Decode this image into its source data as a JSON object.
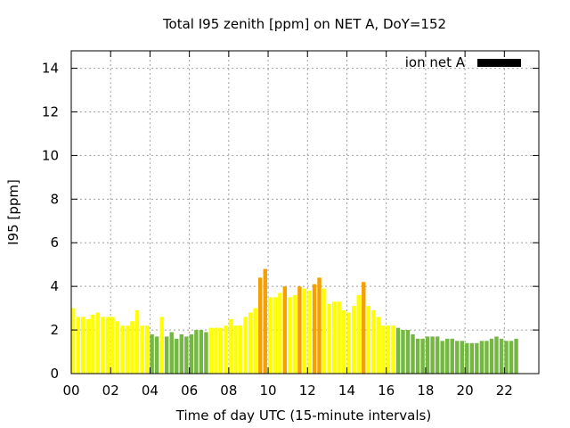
{
  "chart_data": {
    "type": "bar",
    "title": "Total I95 zenith [ppm] on NET A, DoY=152",
    "xlabel": "Time of day UTC (15-minute intervals)",
    "ylabel": "I95 [ppm]",
    "legend": {
      "label": "ion net A",
      "placement": "top-right",
      "color": "#000000"
    },
    "xlim": [
      0,
      23.75
    ],
    "ylim": [
      0,
      14.8
    ],
    "grid": true,
    "xticks": [
      "00",
      "02",
      "04",
      "06",
      "08",
      "10",
      "12",
      "14",
      "16",
      "18",
      "20",
      "22"
    ],
    "yticks": [
      "0",
      "2",
      "4",
      "6",
      "8",
      "10",
      "12",
      "14"
    ],
    "colors": {
      "green": "#74b842",
      "yellow": "#ffff00",
      "orange": "#f5a000"
    },
    "values": [
      3.0,
      2.6,
      2.6,
      2.5,
      2.7,
      2.8,
      2.6,
      2.6,
      2.6,
      2.4,
      2.2,
      2.2,
      2.4,
      2.9,
      2.2,
      2.2,
      1.8,
      1.7,
      2.6,
      1.7,
      1.9,
      1.6,
      1.8,
      1.7,
      1.8,
      2.0,
      2.0,
      1.9,
      2.1,
      2.1,
      2.1,
      2.2,
      2.5,
      2.2,
      2.2,
      2.6,
      2.8,
      3.0,
      4.4,
      4.8,
      3.5,
      3.5,
      3.7,
      4.0,
      3.5,
      3.6,
      4.0,
      3.9,
      3.8,
      4.1,
      4.4,
      3.9,
      3.2,
      3.3,
      3.3,
      2.9,
      2.8,
      3.1,
      3.6,
      4.2,
      3.1,
      2.9,
      2.6,
      2.2,
      2.2,
      2.2,
      2.1,
      2.0,
      2.0,
      1.8,
      1.6,
      1.6,
      1.7,
      1.7,
      1.7,
      1.5,
      1.6,
      1.6,
      1.5,
      1.5,
      1.4,
      1.4,
      1.4,
      1.5,
      1.5,
      1.6,
      1.7,
      1.6,
      1.5,
      1.5,
      1.6
    ],
    "bar_colors": [
      "yellow",
      "yellow",
      "yellow",
      "yellow",
      "yellow",
      "yellow",
      "yellow",
      "yellow",
      "yellow",
      "yellow",
      "yellow",
      "yellow",
      "yellow",
      "yellow",
      "yellow",
      "yellow",
      "green",
      "green",
      "yellow",
      "green",
      "green",
      "green",
      "green",
      "green",
      "green",
      "green",
      "green",
      "green",
      "yellow",
      "yellow",
      "yellow",
      "yellow",
      "yellow",
      "yellow",
      "yellow",
      "yellow",
      "yellow",
      "yellow",
      "orange",
      "orange",
      "yellow",
      "yellow",
      "yellow",
      "orange",
      "yellow",
      "yellow",
      "orange",
      "yellow",
      "yellow",
      "orange",
      "orange",
      "yellow",
      "yellow",
      "yellow",
      "yellow",
      "yellow",
      "yellow",
      "yellow",
      "yellow",
      "orange",
      "yellow",
      "yellow",
      "yellow",
      "yellow",
      "yellow",
      "yellow",
      "green",
      "green",
      "green",
      "green",
      "green",
      "green",
      "green",
      "green",
      "green",
      "green",
      "green",
      "green",
      "green",
      "green",
      "green",
      "green",
      "green",
      "green",
      "green",
      "green",
      "green",
      "green",
      "green",
      "green",
      "green"
    ]
  }
}
